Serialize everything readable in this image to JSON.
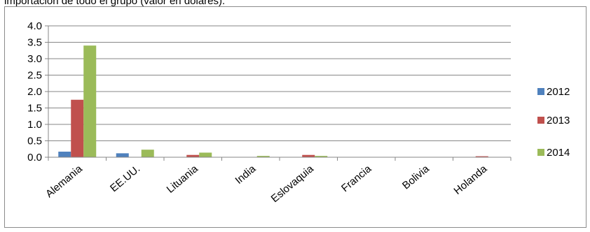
{
  "caption": "importación de todo el grupo (valor en dólares).",
  "chart_data": {
    "type": "bar",
    "title": "",
    "xlabel": "",
    "ylabel": "",
    "categories": [
      "Alemania",
      "EE.UU.",
      "Lituania",
      "India",
      "Eslovaquia",
      "Francia",
      "Bolivia",
      "Holanda"
    ],
    "series": [
      {
        "name": "2012",
        "color": "#4f81bd",
        "values": [
          0.17,
          0.12,
          0.0,
          0.0,
          0.0,
          0.0,
          0.0,
          0.0
        ]
      },
      {
        "name": "2013",
        "color": "#c0504d",
        "values": [
          1.75,
          0.0,
          0.07,
          0.0,
          0.07,
          0.0,
          0.0,
          0.03
        ]
      },
      {
        "name": "2014",
        "color": "#9bbb59",
        "values": [
          3.4,
          0.23,
          0.14,
          0.04,
          0.04,
          0.01,
          0.01,
          0.01
        ]
      }
    ],
    "yticks": [
      "0.0",
      "0.5",
      "1.0",
      "1.5",
      "2.0",
      "2.5",
      "3.0",
      "3.5",
      "4.0"
    ],
    "ylim": [
      0,
      4
    ],
    "grid": true,
    "legend": "right"
  }
}
